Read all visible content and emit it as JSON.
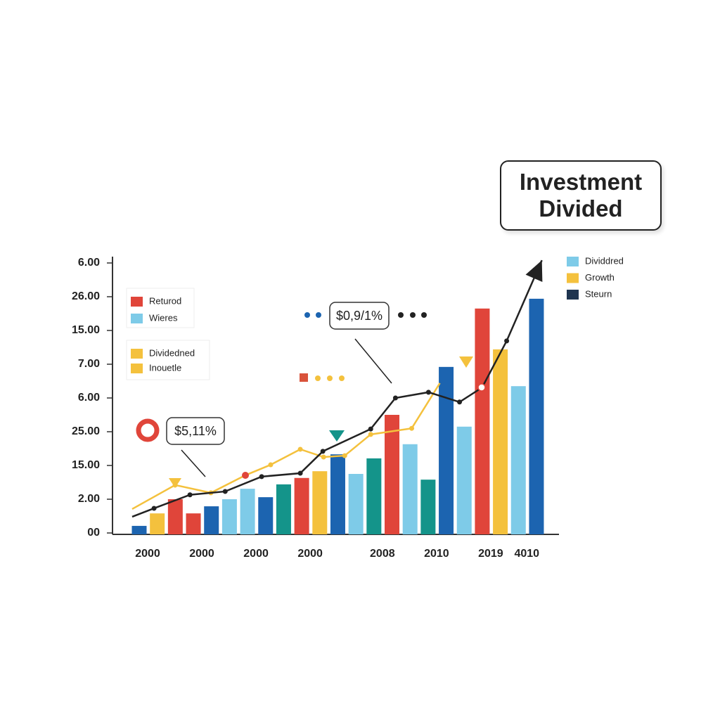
{
  "chart_data": {
    "type": "bar",
    "title": "Investment Divided",
    "ylim": [
      0,
      8
    ],
    "yticks": [
      {
        "value": 0,
        "label": "00"
      },
      {
        "value": 1,
        "label": "2.00"
      },
      {
        "value": 2,
        "label": "15.00"
      },
      {
        "value": 3,
        "label": "25.00"
      },
      {
        "value": 4,
        "label": "6.00"
      },
      {
        "value": 5,
        "label": "7.00"
      },
      {
        "value": 6,
        "label": "15.00"
      },
      {
        "value": 7,
        "label": "26.00"
      },
      {
        "value": 8,
        "label": "6.00"
      }
    ],
    "categories": [
      "2000",
      null,
      null,
      "2000",
      null,
      null,
      "2000",
      null,
      null,
      "2000",
      null,
      null,
      null,
      "2008",
      null,
      null,
      "2010",
      null,
      null,
      "2019",
      null,
      "4010",
      null
    ],
    "values": [
      0.21,
      0.58,
      1.0,
      0.58,
      0.79,
      1.0,
      1.31,
      1.06,
      1.44,
      1.63,
      1.83,
      2.33,
      1.75,
      2.21,
      3.5,
      2.63,
      1.58,
      4.92,
      3.15,
      6.65,
      5.44,
      4.35,
      6.94
    ],
    "colors": [
      "#1c64b0",
      "#f4c13d",
      "#e0453a",
      "#e0453a",
      "#1c64b0",
      "#7ecbe8",
      "#7ecbe8",
      "#1c64b0",
      "#14948a",
      "#e0453a",
      "#f4c13d",
      "#1c64b0",
      "#7ecbe8",
      "#14948a",
      "#e0453a",
      "#7ecbe8",
      "#14948a",
      "#1c64b0",
      "#7ecbe8",
      "#e0453a",
      "#f4c13d",
      "#7ecbe8",
      "#1c64b0"
    ],
    "lines": [
      {
        "color": "#f4c13d",
        "x": [
          -0.39,
          1.99,
          3.97,
          5.88,
          7.28,
          8.92,
          10.21,
          11.38,
          12.82,
          15.09,
          16.65
        ],
        "values": [
          0.71,
          1.42,
          1.19,
          1.71,
          2.02,
          2.48,
          2.25,
          2.29,
          2.92,
          3.1,
          4.44
        ]
      },
      {
        "color": "#222222",
        "x": [
          -0.39,
          0.82,
          2.81,
          4.76,
          6.78,
          8.92,
          10.17,
          12.82,
          14.19,
          16.02,
          17.74,
          18.99,
          20.35,
          22.3
        ],
        "values": [
          0.48,
          0.73,
          1.13,
          1.23,
          1.67,
          1.77,
          2.42,
          3.08,
          4.0,
          4.17,
          3.88,
          4.31,
          5.69,
          8.08
        ]
      }
    ],
    "legend_groups": [
      [
        {
          "name": "Returod",
          "color": "#e0453a"
        },
        {
          "name": "Wieres",
          "color": "#7ecbe8"
        }
      ],
      [
        {
          "name": "Dividedned",
          "color": "#f4c13d"
        },
        {
          "name": "Inouetle",
          "color": "#f4c13d"
        }
      ],
      [
        {
          "name": "Dividdred",
          "color": "#7ecbe8"
        },
        {
          "name": "Growth",
          "color": "#f4c13d"
        },
        {
          "name": "Steurn",
          "color": "#1f3550"
        }
      ]
    ],
    "annotations": [
      "$0,9/1%",
      "$5,11%"
    ]
  }
}
